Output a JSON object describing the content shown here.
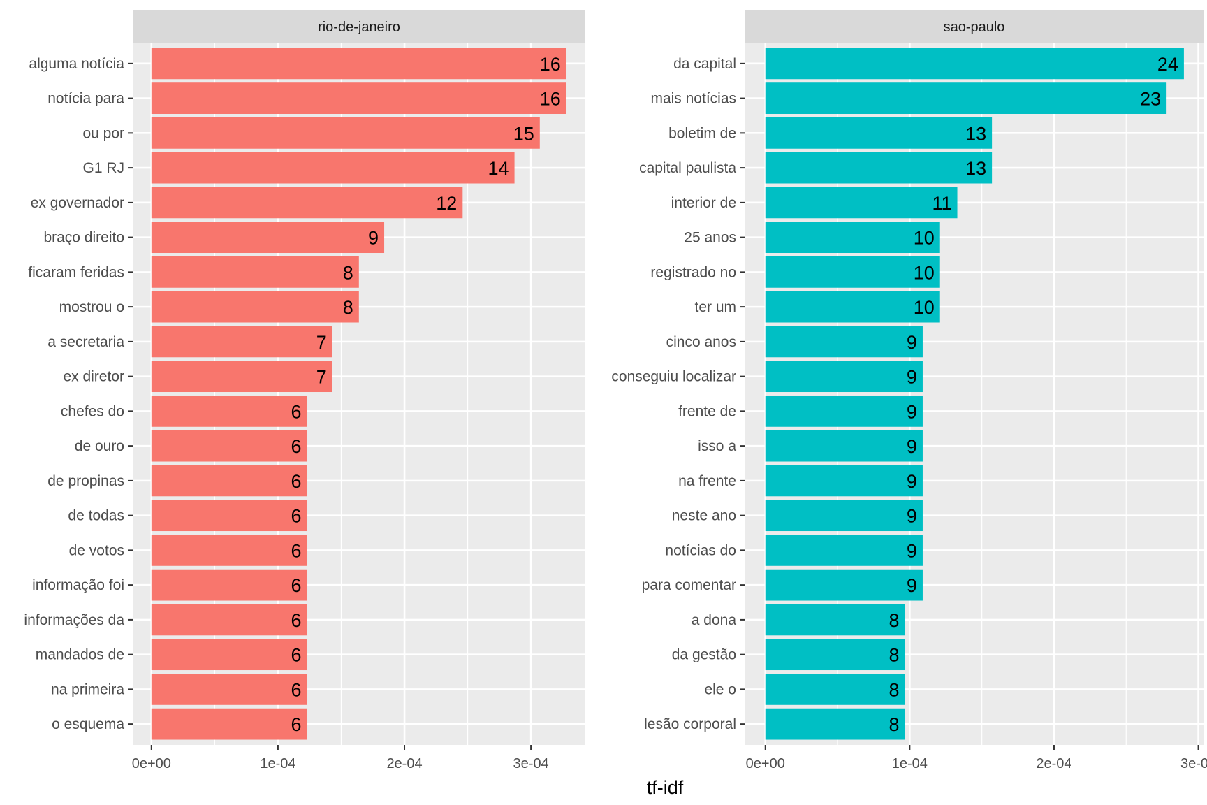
{
  "chart_data": {
    "type": "bar",
    "orientation": "horizontal",
    "xlabel": "tf-idf",
    "x_ticks": [
      "0e+00",
      "1e-04",
      "2e-04",
      "3e-04"
    ],
    "x_tick_values": [
      0,
      0.0001,
      0.0002,
      0.0003
    ],
    "grid": true,
    "panels": [
      {
        "title": "rio-de-janeiro",
        "color": "#F8766D",
        "xlim": [
          -1.48e-05,
          0.000343
        ],
        "categories": [
          "alguma notícia",
          "notícia para",
          "ou por",
          "G1 RJ",
          "ex governador",
          "braço direito",
          "ficaram feridas",
          "mostrou o",
          "a secretaria",
          "ex diretor",
          "chefes do",
          "de ouro",
          "de propinas",
          "de todas",
          "de votos",
          "informação foi",
          "informações da",
          "mandados de",
          "na primeira",
          "o esquema"
        ],
        "values": [
          0.000328,
          0.000328,
          0.000307,
          0.000287,
          0.000246,
          0.000184,
          0.000164,
          0.000164,
          0.000143,
          0.000143,
          0.000123,
          0.000123,
          0.000123,
          0.000123,
          0.000123,
          0.000123,
          0.000123,
          0.000123,
          0.000123,
          0.000123
        ],
        "labels": [
          "16",
          "16",
          "15",
          "14",
          "12",
          "9",
          "8",
          "8",
          "7",
          "7",
          "6",
          "6",
          "6",
          "6",
          "6",
          "6",
          "6",
          "6",
          "6",
          "6"
        ]
      },
      {
        "title": "sao-paulo",
        "color": "#00BFC4",
        "xlim": [
          -1.44e-05,
          0.0003036
        ],
        "categories": [
          "da capital",
          "mais notícias",
          "boletim de",
          "capital paulista",
          "interior de",
          "25 anos",
          "registrado no",
          "ter um",
          "cinco anos",
          "conseguiu localizar",
          "frente de",
          "isso a",
          "na frente",
          "neste ano",
          "notícias do",
          "para comentar",
          "a dona",
          "da gestão",
          "ele o",
          "lesão corporal"
        ],
        "values": [
          0.00029,
          0.000278,
          0.000157,
          0.000157,
          0.000133,
          0.000121,
          0.000121,
          0.000121,
          0.000109,
          0.000109,
          0.000109,
          0.000109,
          0.000109,
          0.000109,
          0.000109,
          0.000109,
          9.67e-05,
          9.67e-05,
          9.67e-05,
          9.67e-05
        ],
        "labels": [
          "24",
          "23",
          "13",
          "13",
          "11",
          "10",
          "10",
          "10",
          "9",
          "9",
          "9",
          "9",
          "9",
          "9",
          "9",
          "9",
          "8",
          "8",
          "8",
          "8"
        ]
      }
    ]
  }
}
